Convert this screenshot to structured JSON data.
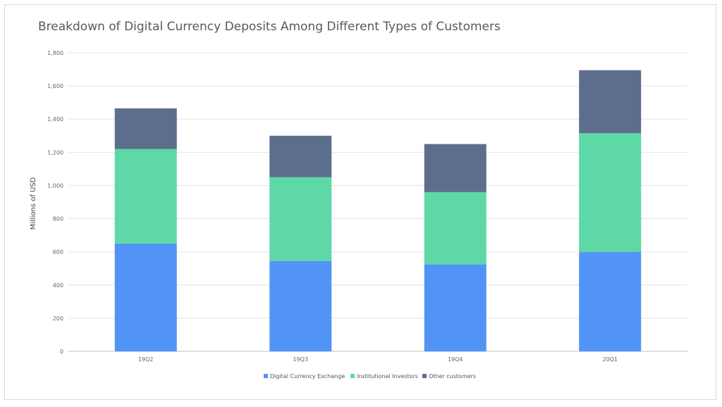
{
  "chart_data": {
    "type": "bar",
    "stacked": true,
    "title": "Breakdown of Digital Currency Deposits Among Different Types of Customers",
    "xlabel": "",
    "ylabel": "Millions of USD",
    "ylim": [
      0,
      1800
    ],
    "yticks": [
      0,
      200,
      400,
      600,
      800,
      1000,
      1200,
      1400,
      1600,
      1800
    ],
    "ytick_labels": [
      "0",
      "200",
      "400",
      "600",
      "800",
      "1,000",
      "1,200",
      "1,400",
      "1,600",
      "1,800"
    ],
    "categories": [
      "19Q2",
      "19Q3",
      "19Q4",
      "20Q1"
    ],
    "grid": true,
    "legend_position": "bottom",
    "series": [
      {
        "name": "Digital Currency Exchange",
        "color": "#5294f5",
        "values": [
          650,
          545,
          525,
          600
        ]
      },
      {
        "name": "Institutional Investors",
        "color": "#5dd8a6",
        "values": [
          570,
          505,
          435,
          715
        ]
      },
      {
        "name": "Other customers",
        "color": "#5c6e8c",
        "values": [
          245,
          250,
          290,
          380
        ]
      }
    ]
  }
}
